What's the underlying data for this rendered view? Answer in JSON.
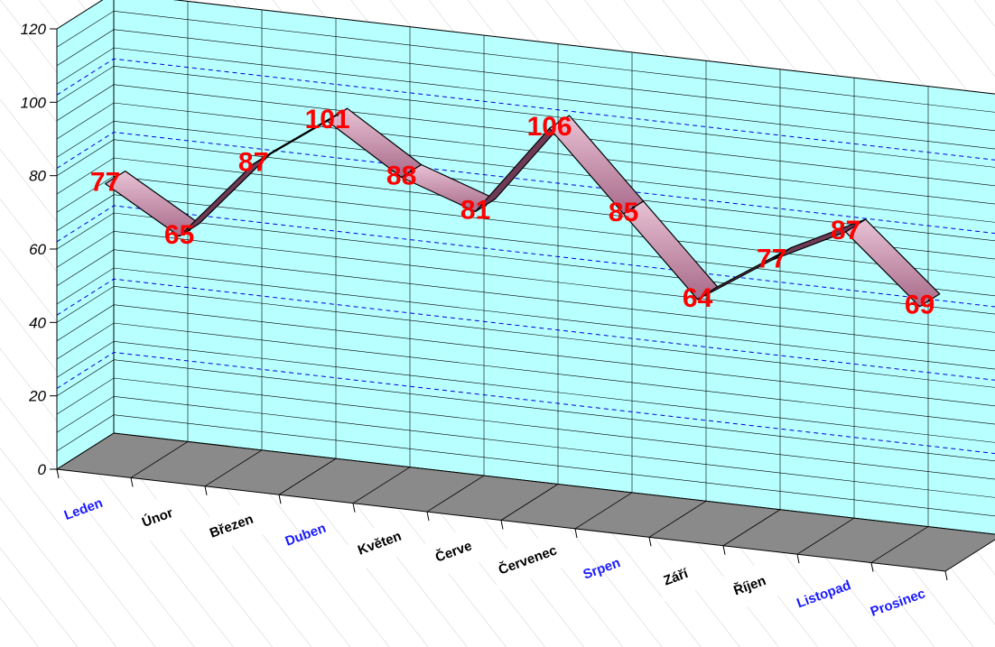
{
  "chart_data": {
    "type": "line",
    "style": "3d-ribbon",
    "categories": [
      "Leden",
      "Únor",
      "Březen",
      "Duben",
      "Květen",
      "Červe",
      "Červenec",
      "Srpen",
      "Září",
      "Říjen",
      "Listopad",
      "Prosinec"
    ],
    "category_colors": [
      "#1a1aff",
      "#000000",
      "#000000",
      "#1a1aff",
      "#000000",
      "#000000",
      "#000000",
      "#1a1aff",
      "#000000",
      "#000000",
      "#1a1aff",
      "#1a1aff"
    ],
    "category_boxed": [
      false,
      true,
      true,
      false,
      true,
      true,
      true,
      false,
      true,
      true,
      false,
      false
    ],
    "values": [
      77,
      65,
      87,
      101,
      88,
      81,
      106,
      85,
      64,
      77,
      87,
      69
    ],
    "y_ticks": [
      "0",
      "20",
      "40",
      "60",
      "80",
      "100",
      "120"
    ],
    "ylim": [
      0,
      120
    ],
    "grid": true,
    "colors": {
      "wall": "#b8ffff",
      "floor": "#8a8a8a",
      "ribbon": "#c08aa4",
      "ribbon_top": "#e2b8cc",
      "ribbon_side": "#6e3a55",
      "label": "#ff0000",
      "gridline": "#000000",
      "dashed": "#0000dd"
    }
  }
}
